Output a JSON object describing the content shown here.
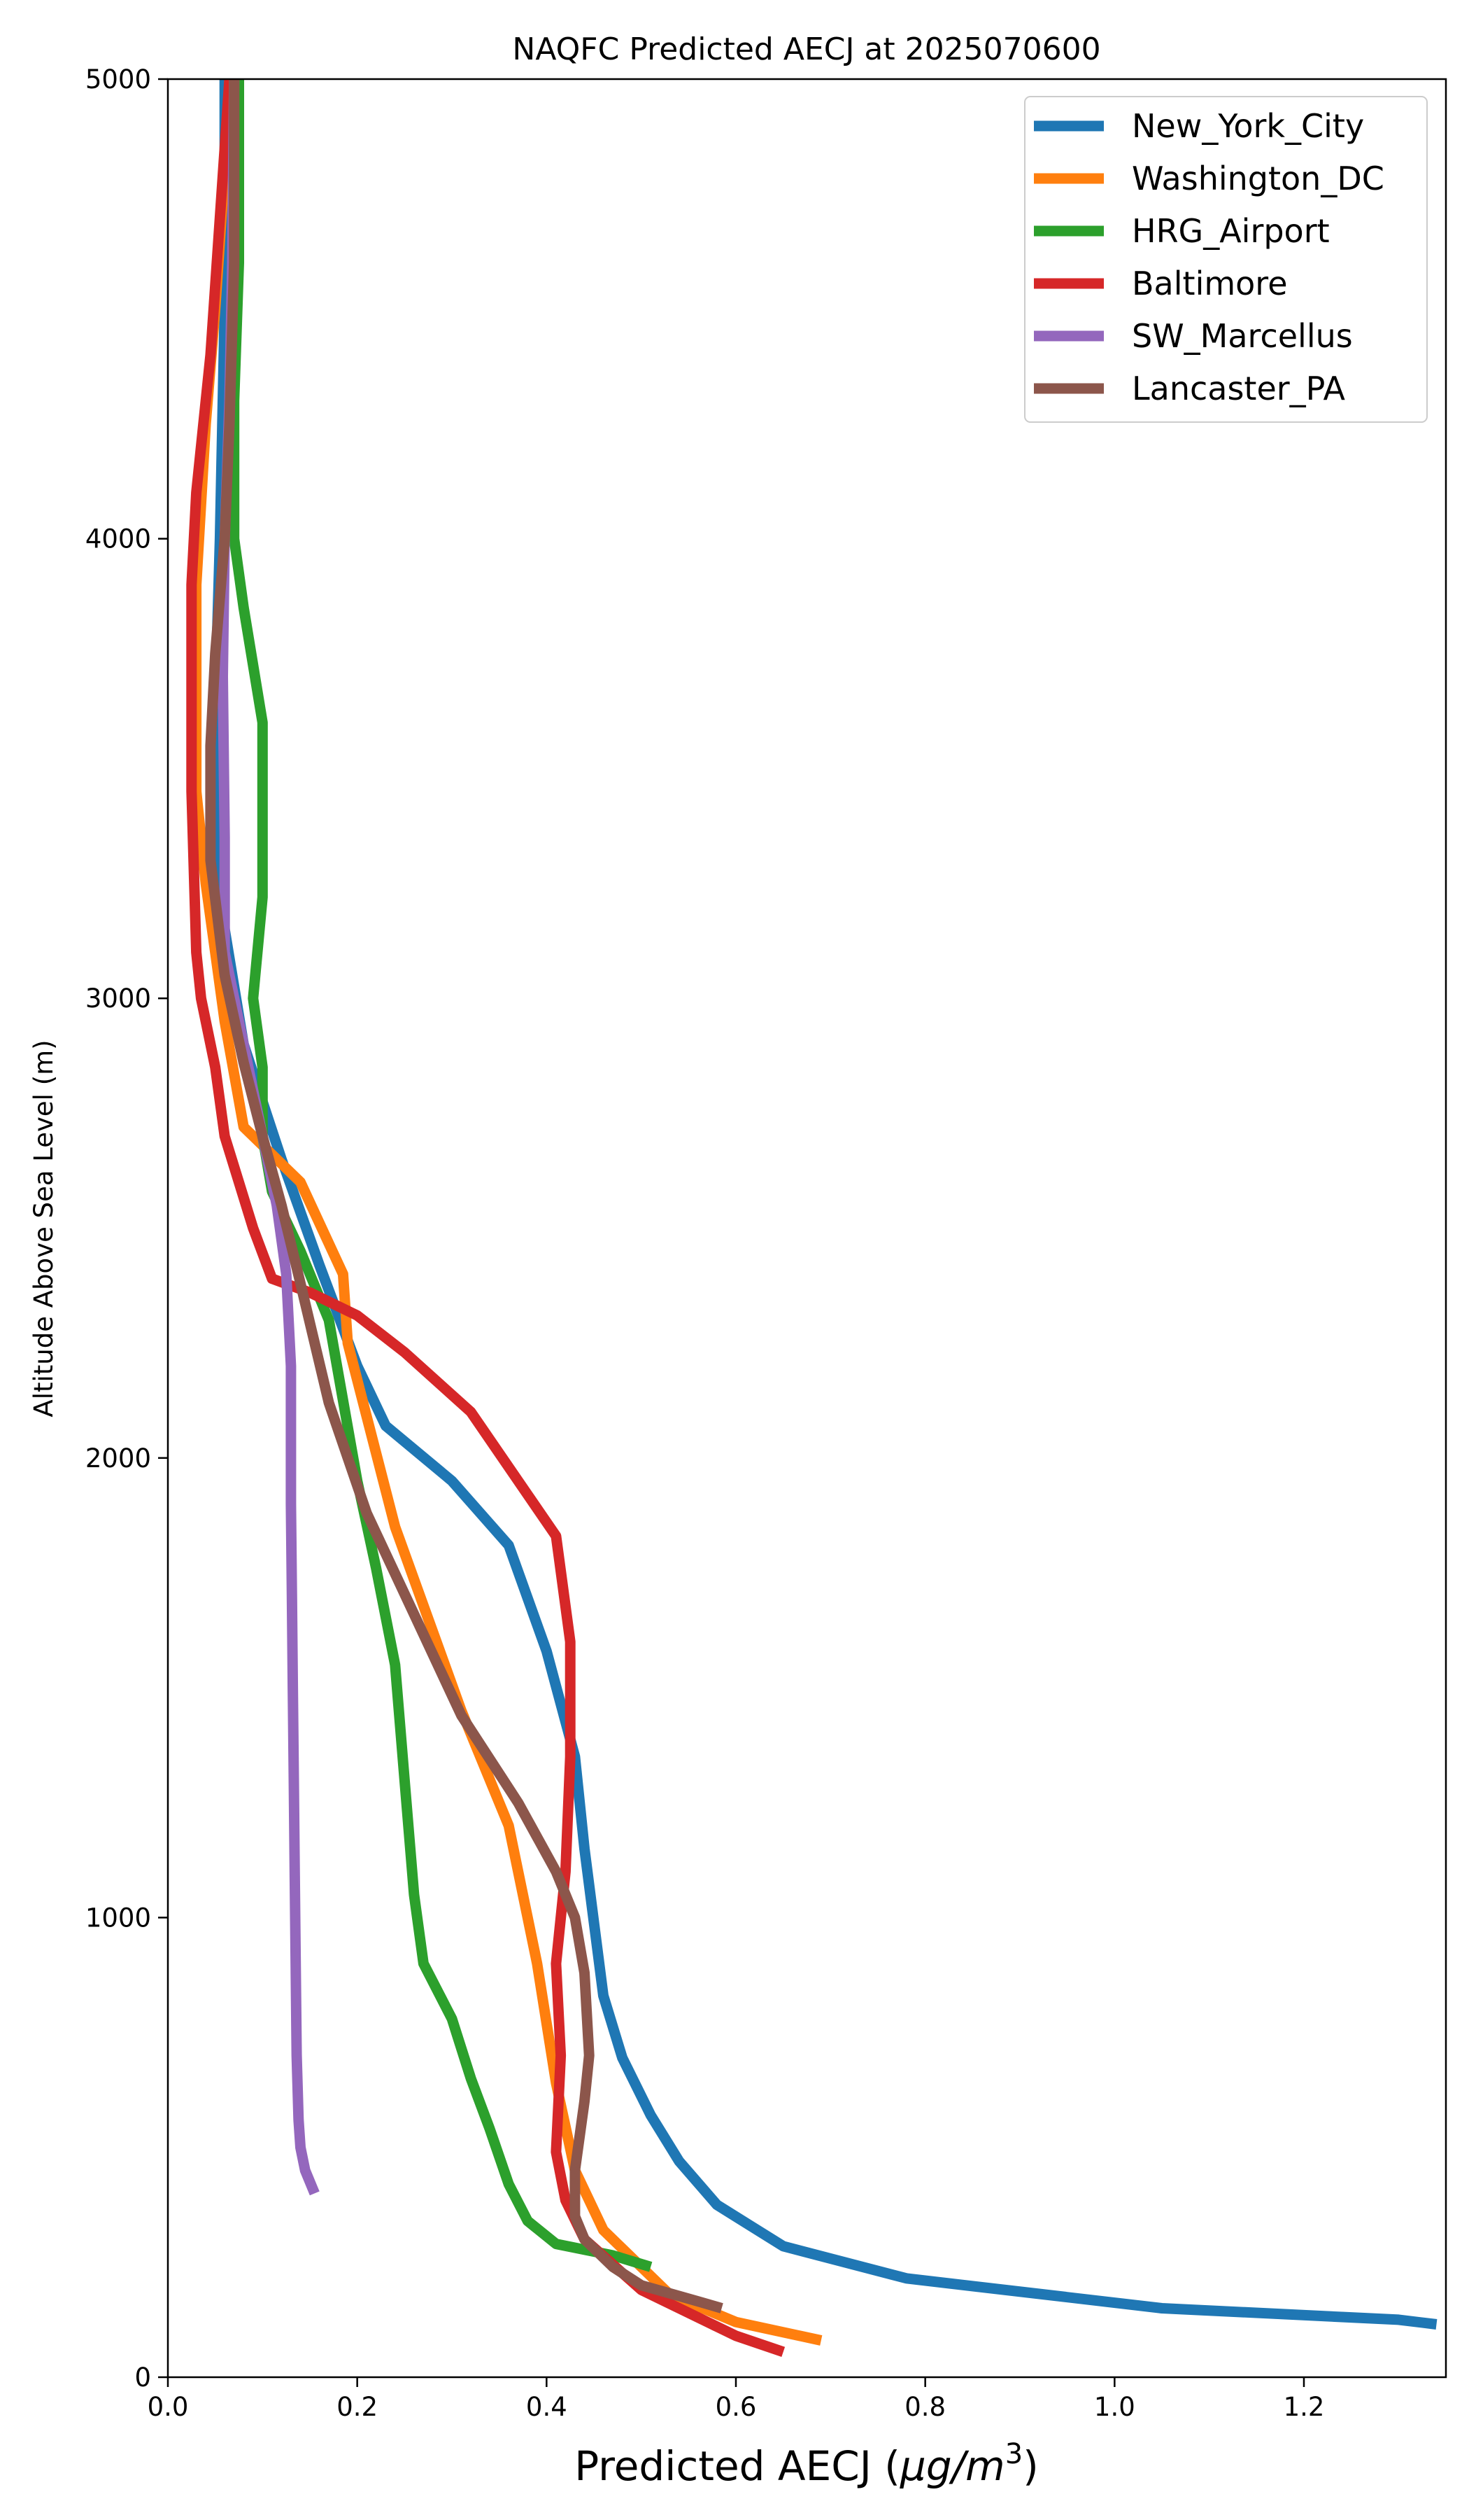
{
  "chart_data": {
    "type": "line",
    "title": "NAQFC Predicted AECJ at 2025070600",
    "xlabel": "Predicted AECJ (μg/m³)",
    "xlabel_main": "Predicted AECJ (",
    "xlabel_unit": "μg/m",
    "xlabel_sup": "3",
    "xlabel_close": ")",
    "ylabel": "Altitude Above Sea Level (m)",
    "xlim": [
      0.0,
      1.35
    ],
    "ylim": [
      0,
      5000
    ],
    "xticks": [
      0.0,
      0.2,
      0.4,
      0.6,
      0.8,
      1.0,
      1.2
    ],
    "xtick_labels": [
      "0.0",
      "0.2",
      "0.4",
      "0.6",
      "0.8",
      "1.0",
      "1.2"
    ],
    "yticks": [
      0,
      1000,
      2000,
      3000,
      4000,
      5000
    ],
    "ytick_labels": [
      "0",
      "1000",
      "2000",
      "3000",
      "4000",
      "5000"
    ],
    "grid": false,
    "legend_position": "top-right",
    "series": [
      {
        "name": "New_York_City",
        "color": "#1f77b4",
        "points": [
          [
            1.34,
            115
          ],
          [
            1.3,
            125
          ],
          [
            1.05,
            150
          ],
          [
            0.78,
            215
          ],
          [
            0.65,
            285
          ],
          [
            0.58,
            375
          ],
          [
            0.54,
            470
          ],
          [
            0.51,
            570
          ],
          [
            0.48,
            695
          ],
          [
            0.46,
            830
          ],
          [
            0.45,
            990
          ],
          [
            0.44,
            1150
          ],
          [
            0.43,
            1350
          ],
          [
            0.4,
            1580
          ],
          [
            0.36,
            1810
          ],
          [
            0.3,
            1950
          ],
          [
            0.23,
            2070
          ],
          [
            0.2,
            2200
          ],
          [
            0.16,
            2420
          ],
          [
            0.12,
            2650
          ],
          [
            0.08,
            2900
          ],
          [
            0.06,
            3150
          ],
          [
            0.05,
            3400
          ],
          [
            0.05,
            3650
          ],
          [
            0.055,
            4000
          ],
          [
            0.06,
            4500
          ],
          [
            0.06,
            5000
          ]
        ]
      },
      {
        "name": "Washington_DC",
        "color": "#ff7f0e",
        "points": [
          [
            0.69,
            80
          ],
          [
            0.6,
            120
          ],
          [
            0.53,
            180
          ],
          [
            0.46,
            320
          ],
          [
            0.43,
            450
          ],
          [
            0.41,
            640
          ],
          [
            0.39,
            900
          ],
          [
            0.36,
            1200
          ],
          [
            0.31,
            1450
          ],
          [
            0.24,
            1850
          ],
          [
            0.19,
            2250
          ],
          [
            0.185,
            2400
          ],
          [
            0.14,
            2600
          ],
          [
            0.08,
            2720
          ],
          [
            0.06,
            2950
          ],
          [
            0.05,
            3100
          ],
          [
            0.04,
            3250
          ],
          [
            0.03,
            3450
          ],
          [
            0.03,
            3900
          ],
          [
            0.04,
            4250
          ],
          [
            0.05,
            4500
          ],
          [
            0.06,
            4800
          ],
          [
            0.065,
            5000
          ]
        ]
      },
      {
        "name": "HRG_Airport",
        "color": "#2ca02c",
        "points": [
          [
            0.51,
            240
          ],
          [
            0.47,
            265
          ],
          [
            0.41,
            290
          ],
          [
            0.38,
            340
          ],
          [
            0.36,
            420
          ],
          [
            0.34,
            540
          ],
          [
            0.32,
            650
          ],
          [
            0.3,
            780
          ],
          [
            0.27,
            900
          ],
          [
            0.26,
            1050
          ],
          [
            0.25,
            1300
          ],
          [
            0.24,
            1550
          ],
          [
            0.22,
            1760
          ],
          [
            0.2,
            1950
          ],
          [
            0.17,
            2300
          ],
          [
            0.14,
            2450
          ],
          [
            0.11,
            2580
          ],
          [
            0.1,
            2700
          ],
          [
            0.1,
            2850
          ],
          [
            0.09,
            3000
          ],
          [
            0.1,
            3220
          ],
          [
            0.1,
            3600
          ],
          [
            0.08,
            3850
          ],
          [
            0.07,
            4000
          ],
          [
            0.07,
            4300
          ],
          [
            0.075,
            4600
          ],
          [
            0.075,
            5000
          ]
        ]
      },
      {
        "name": "Baltimore",
        "color": "#d62728",
        "points": [
          [
            0.65,
            55
          ],
          [
            0.6,
            90
          ],
          [
            0.58,
            110
          ],
          [
            0.5,
            190
          ],
          [
            0.44,
            300
          ],
          [
            0.42,
            385
          ],
          [
            0.41,
            490
          ],
          [
            0.415,
            700
          ],
          [
            0.41,
            900
          ],
          [
            0.42,
            1100
          ],
          [
            0.425,
            1350
          ],
          [
            0.425,
            1600
          ],
          [
            0.41,
            1830
          ],
          [
            0.32,
            2100
          ],
          [
            0.25,
            2230
          ],
          [
            0.2,
            2310
          ],
          [
            0.15,
            2360
          ],
          [
            0.11,
            2390
          ],
          [
            0.09,
            2500
          ],
          [
            0.06,
            2700
          ],
          [
            0.05,
            2850
          ],
          [
            0.035,
            3000
          ],
          [
            0.03,
            3100
          ],
          [
            0.025,
            3450
          ],
          [
            0.025,
            3900
          ],
          [
            0.03,
            4100
          ],
          [
            0.045,
            4400
          ],
          [
            0.055,
            4700
          ],
          [
            0.065,
            5000
          ]
        ]
      },
      {
        "name": "SW_Marcellus",
        "color": "#9467bd",
        "points": [
          [
            0.155,
            400
          ],
          [
            0.145,
            450
          ],
          [
            0.14,
            500
          ],
          [
            0.138,
            560
          ],
          [
            0.136,
            700
          ],
          [
            0.135,
            900
          ],
          [
            0.134,
            1100
          ],
          [
            0.133,
            1300
          ],
          [
            0.132,
            1500
          ],
          [
            0.131,
            1700
          ],
          [
            0.13,
            1900
          ],
          [
            0.13,
            2100
          ],
          [
            0.13,
            2200
          ],
          [
            0.125,
            2400
          ],
          [
            0.115,
            2550
          ],
          [
            0.09,
            2800
          ],
          [
            0.07,
            3000
          ],
          [
            0.06,
            3100
          ],
          [
            0.06,
            3350
          ],
          [
            0.058,
            3700
          ],
          [
            0.06,
            4000
          ],
          [
            0.065,
            4300
          ],
          [
            0.068,
            4600
          ],
          [
            0.07,
            5000
          ]
        ]
      },
      {
        "name": "Lancaster_PA",
        "color": "#8c564b",
        "points": [
          [
            0.585,
            150
          ],
          [
            0.56,
            165
          ],
          [
            0.5,
            200
          ],
          [
            0.47,
            240
          ],
          [
            0.44,
            300
          ],
          [
            0.43,
            350
          ],
          [
            0.43,
            450
          ],
          [
            0.44,
            600
          ],
          [
            0.445,
            700
          ],
          [
            0.44,
            880
          ],
          [
            0.43,
            1000
          ],
          [
            0.41,
            1100
          ],
          [
            0.37,
            1250
          ],
          [
            0.31,
            1440
          ],
          [
            0.26,
            1660
          ],
          [
            0.21,
            1880
          ],
          [
            0.17,
            2120
          ],
          [
            0.14,
            2380
          ],
          [
            0.12,
            2550
          ],
          [
            0.1,
            2700
          ],
          [
            0.08,
            2860
          ],
          [
            0.06,
            3050
          ],
          [
            0.045,
            3300
          ],
          [
            0.045,
            3550
          ],
          [
            0.05,
            3750
          ],
          [
            0.06,
            4000
          ],
          [
            0.065,
            4250
          ],
          [
            0.07,
            4600
          ],
          [
            0.07,
            5000
          ]
        ]
      }
    ]
  }
}
